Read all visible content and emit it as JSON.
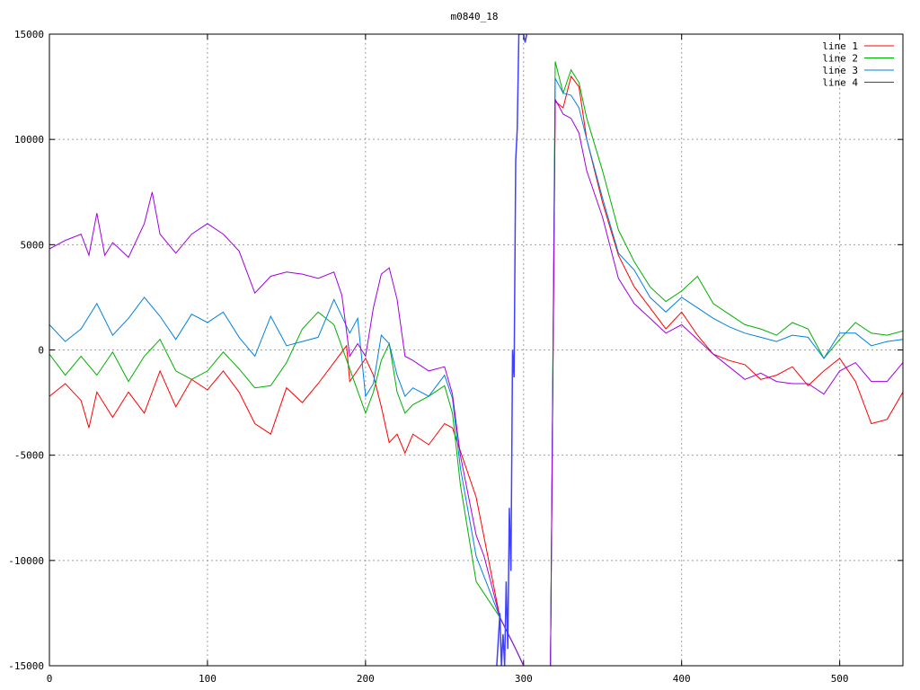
{
  "chart_data": {
    "type": "line",
    "title": "m0840_18",
    "xlabel": "",
    "ylabel": "",
    "xlim": [
      0,
      540
    ],
    "ylim": [
      -15000,
      15000
    ],
    "xticks": [
      0,
      100,
      200,
      300,
      400,
      500
    ],
    "yticks": [
      -15000,
      -10000,
      -5000,
      0,
      5000,
      10000,
      15000
    ],
    "grid": true,
    "legend_position": "top-right",
    "series": [
      {
        "name": "line 1",
        "color": "#ff0000",
        "points": [
          [
            0,
            -2200
          ],
          [
            10,
            -1600
          ],
          [
            20,
            -2400
          ],
          [
            25,
            -3700
          ],
          [
            30,
            -2000
          ],
          [
            40,
            -3200
          ],
          [
            50,
            -2000
          ],
          [
            60,
            -3000
          ],
          [
            70,
            -1000
          ],
          [
            80,
            -2700
          ],
          [
            90,
            -1400
          ],
          [
            100,
            -1900
          ],
          [
            110,
            -1000
          ],
          [
            120,
            -2000
          ],
          [
            130,
            -3500
          ],
          [
            140,
            -4000
          ],
          [
            150,
            -1800
          ],
          [
            160,
            -2500
          ],
          [
            170,
            -1600
          ],
          [
            180,
            -600
          ],
          [
            188,
            200
          ],
          [
            190,
            -1500
          ],
          [
            200,
            -400
          ],
          [
            205,
            -1200
          ],
          [
            210,
            -2700
          ],
          [
            215,
            -4400
          ],
          [
            220,
            -4000
          ],
          [
            225,
            -4900
          ],
          [
            230,
            -4000
          ],
          [
            240,
            -4500
          ],
          [
            250,
            -3500
          ],
          [
            255,
            -3700
          ],
          [
            260,
            -4800
          ],
          [
            270,
            -7000
          ],
          [
            285,
            -12700
          ],
          [
            295,
            -14200
          ],
          [
            300,
            -15000
          ],
          [
            310,
            -15000
          ],
          [
            317,
            -15000
          ],
          [
            320,
            11800
          ],
          [
            325,
            11500
          ],
          [
            330,
            13000
          ],
          [
            335,
            12500
          ],
          [
            340,
            10000
          ],
          [
            350,
            7000
          ],
          [
            360,
            4500
          ],
          [
            370,
            3000
          ],
          [
            380,
            2000
          ],
          [
            390,
            1000
          ],
          [
            400,
            1800
          ],
          [
            410,
            700
          ],
          [
            420,
            -200
          ],
          [
            430,
            -500
          ],
          [
            440,
            -700
          ],
          [
            450,
            -1400
          ],
          [
            460,
            -1200
          ],
          [
            470,
            -800
          ],
          [
            480,
            -1700
          ],
          [
            490,
            -1000
          ],
          [
            500,
            -400
          ],
          [
            510,
            -1500
          ],
          [
            520,
            -3500
          ],
          [
            530,
            -3300
          ],
          [
            540,
            -2000
          ]
        ]
      },
      {
        "name": "line 2",
        "color": "#00b000",
        "points": [
          [
            0,
            -200
          ],
          [
            10,
            -1200
          ],
          [
            20,
            -300
          ],
          [
            30,
            -1200
          ],
          [
            40,
            -100
          ],
          [
            50,
            -1500
          ],
          [
            60,
            -300
          ],
          [
            70,
            500
          ],
          [
            80,
            -1000
          ],
          [
            90,
            -1400
          ],
          [
            100,
            -1000
          ],
          [
            110,
            -100
          ],
          [
            120,
            -900
          ],
          [
            130,
            -1800
          ],
          [
            140,
            -1700
          ],
          [
            150,
            -600
          ],
          [
            160,
            1000
          ],
          [
            170,
            1800
          ],
          [
            180,
            1200
          ],
          [
            190,
            -900
          ],
          [
            200,
            -3000
          ],
          [
            205,
            -2000
          ],
          [
            210,
            -500
          ],
          [
            215,
            300
          ],
          [
            220,
            -2000
          ],
          [
            225,
            -3000
          ],
          [
            230,
            -2600
          ],
          [
            240,
            -2200
          ],
          [
            250,
            -1700
          ],
          [
            255,
            -3000
          ],
          [
            260,
            -6400
          ],
          [
            270,
            -11000
          ],
          [
            285,
            -12700
          ],
          [
            295,
            -14200
          ],
          [
            300,
            -15000
          ],
          [
            310,
            -15000
          ],
          [
            317,
            -15000
          ],
          [
            320,
            13700
          ],
          [
            325,
            12200
          ],
          [
            330,
            13300
          ],
          [
            335,
            12700
          ],
          [
            340,
            11000
          ],
          [
            350,
            8500
          ],
          [
            360,
            5700
          ],
          [
            370,
            4200
          ],
          [
            380,
            3000
          ],
          [
            390,
            2300
          ],
          [
            400,
            2800
          ],
          [
            410,
            3500
          ],
          [
            420,
            2200
          ],
          [
            430,
            1700
          ],
          [
            440,
            1200
          ],
          [
            450,
            1000
          ],
          [
            460,
            700
          ],
          [
            470,
            1300
          ],
          [
            480,
            1000
          ],
          [
            490,
            -400
          ],
          [
            500,
            500
          ],
          [
            510,
            1300
          ],
          [
            520,
            800
          ],
          [
            530,
            700
          ],
          [
            540,
            900
          ]
        ]
      },
      {
        "name": "line 3",
        "color": "#0080e0",
        "points": [
          [
            0,
            1200
          ],
          [
            10,
            400
          ],
          [
            20,
            1000
          ],
          [
            30,
            2200
          ],
          [
            40,
            700
          ],
          [
            50,
            1500
          ],
          [
            60,
            2500
          ],
          [
            70,
            1600
          ],
          [
            80,
            500
          ],
          [
            90,
            1700
          ],
          [
            100,
            1300
          ],
          [
            110,
            1800
          ],
          [
            120,
            600
          ],
          [
            130,
            -300
          ],
          [
            140,
            1600
          ],
          [
            150,
            200
          ],
          [
            160,
            400
          ],
          [
            170,
            600
          ],
          [
            180,
            2400
          ],
          [
            190,
            800
          ],
          [
            195,
            1500
          ],
          [
            200,
            -2200
          ],
          [
            205,
            -1600
          ],
          [
            210,
            700
          ],
          [
            215,
            300
          ],
          [
            220,
            -1200
          ],
          [
            225,
            -2200
          ],
          [
            230,
            -1800
          ],
          [
            240,
            -2200
          ],
          [
            250,
            -1200
          ],
          [
            255,
            -2300
          ],
          [
            260,
            -5600
          ],
          [
            270,
            -9800
          ],
          [
            285,
            -12700
          ],
          [
            295,
            -14200
          ],
          [
            300,
            -15000
          ],
          [
            310,
            -15000
          ],
          [
            317,
            -15000
          ],
          [
            320,
            12900
          ],
          [
            325,
            12200
          ],
          [
            330,
            12100
          ],
          [
            335,
            11500
          ],
          [
            340,
            10000
          ],
          [
            350,
            7200
          ],
          [
            360,
            4600
          ],
          [
            370,
            3800
          ],
          [
            380,
            2500
          ],
          [
            390,
            1800
          ],
          [
            400,
            2500
          ],
          [
            410,
            2000
          ],
          [
            420,
            1500
          ],
          [
            430,
            1100
          ],
          [
            440,
            800
          ],
          [
            450,
            600
          ],
          [
            460,
            400
          ],
          [
            470,
            700
          ],
          [
            480,
            600
          ],
          [
            490,
            -400
          ],
          [
            500,
            800
          ],
          [
            510,
            800
          ],
          [
            520,
            200
          ],
          [
            530,
            400
          ],
          [
            540,
            500
          ]
        ]
      },
      {
        "name": "line 4",
        "color": "#a000e0",
        "points": [
          [
            0,
            4800
          ],
          [
            10,
            5200
          ],
          [
            20,
            5500
          ],
          [
            25,
            4500
          ],
          [
            30,
            6500
          ],
          [
            35,
            4500
          ],
          [
            40,
            5100
          ],
          [
            50,
            4400
          ],
          [
            60,
            6000
          ],
          [
            65,
            7500
          ],
          [
            70,
            5500
          ],
          [
            80,
            4600
          ],
          [
            90,
            5500
          ],
          [
            100,
            6000
          ],
          [
            110,
            5500
          ],
          [
            120,
            4700
          ],
          [
            130,
            2700
          ],
          [
            140,
            3500
          ],
          [
            150,
            3700
          ],
          [
            160,
            3600
          ],
          [
            170,
            3400
          ],
          [
            180,
            3700
          ],
          [
            185,
            2600
          ],
          [
            190,
            -300
          ],
          [
            195,
            300
          ],
          [
            200,
            -300
          ],
          [
            205,
            2000
          ],
          [
            210,
            3600
          ],
          [
            215,
            3900
          ],
          [
            220,
            2400
          ],
          [
            225,
            -300
          ],
          [
            230,
            -500
          ],
          [
            240,
            -1000
          ],
          [
            250,
            -800
          ],
          [
            255,
            -2100
          ],
          [
            260,
            -5000
          ],
          [
            270,
            -8800
          ],
          [
            275,
            -9800
          ],
          [
            285,
            -12700
          ],
          [
            295,
            -14200
          ],
          [
            300,
            -15000
          ],
          [
            310,
            -15000
          ],
          [
            317,
            -15000
          ],
          [
            320,
            11900
          ],
          [
            325,
            11200
          ],
          [
            330,
            11000
          ],
          [
            335,
            10300
          ],
          [
            340,
            8500
          ],
          [
            350,
            6300
          ],
          [
            360,
            3400
          ],
          [
            370,
            2200
          ],
          [
            380,
            1500
          ],
          [
            390,
            800
          ],
          [
            400,
            1200
          ],
          [
            410,
            500
          ],
          [
            420,
            -200
          ],
          [
            430,
            -800
          ],
          [
            440,
            -1400
          ],
          [
            450,
            -1100
          ],
          [
            460,
            -1500
          ],
          [
            470,
            -1600
          ],
          [
            480,
            -1600
          ],
          [
            490,
            -2100
          ],
          [
            500,
            -1000
          ],
          [
            510,
            -600
          ],
          [
            520,
            -1500
          ],
          [
            530,
            -1500
          ],
          [
            540,
            -600
          ]
        ]
      }
    ],
    "spike": {
      "color": "#4040ff",
      "points": [
        [
          283,
          -15000
        ],
        [
          285,
          -12500
        ],
        [
          286,
          -15000
        ],
        [
          287,
          -13500
        ],
        [
          288,
          -15000
        ],
        [
          289,
          -11000
        ],
        [
          290,
          -14200
        ],
        [
          291,
          -7500
        ],
        [
          292,
          -10500
        ],
        [
          293,
          0
        ],
        [
          294,
          -1300
        ],
        [
          295,
          9000
        ],
        [
          296,
          10500
        ],
        [
          297,
          15000
        ],
        [
          300,
          15000
        ],
        [
          301,
          14600
        ],
        [
          302,
          15000
        ]
      ]
    }
  }
}
